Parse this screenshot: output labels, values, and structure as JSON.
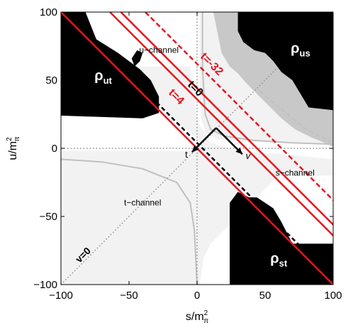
{
  "chart_data": {
    "type": "region-plot",
    "xlabel": "s/m",
    "xlabel_sup": "2",
    "xlabel_sub": "π",
    "ylabel": "u/m",
    "ylabel_sup": "2",
    "ylabel_sub": "π",
    "xlim": [
      -100,
      100
    ],
    "ylim": [
      -100,
      100
    ],
    "xticks": [
      -100,
      -50,
      0,
      50,
      100
    ],
    "yticks": [
      -100,
      -50,
      0,
      50,
      100
    ],
    "x_tick_labels": [
      "−100",
      "−50",
      "0",
      "50",
      "100"
    ],
    "y_tick_labels": [
      "−100",
      "−50",
      "0",
      "50",
      "100"
    ],
    "colors": {
      "black_region": "#000000",
      "gray_region": "#c8c8c8",
      "light_region": "#f2f2f2",
      "curve_gray": "#c0c0c0",
      "red": "#e8141e",
      "black_line": "#000000",
      "dotted": "#8c8c8c"
    },
    "lines": {
      "t0": {
        "t": 0,
        "label": "t=0",
        "style": "black-dashed"
      },
      "t4": {
        "t": 4,
        "label": "t=4",
        "style": "red-solid"
      },
      "tm32": {
        "t": -32,
        "label": "t=-32",
        "style": "red-solid"
      },
      "t_neg": {
        "t": -40,
        "label": "",
        "style": "red-solid"
      },
      "t_dash": {
        "t": -58,
        "label": "",
        "style": "red-dashed"
      },
      "v0": {
        "label": "v=0",
        "style": "gray-dotted"
      }
    },
    "channels": {
      "u": "u−channel",
      "s": "s−channel",
      "t": "t−channel"
    },
    "regions": {
      "ut": {
        "symbol": "ρ",
        "subscript": "ut"
      },
      "us": {
        "symbol": "ρ",
        "subscript": "us"
      },
      "st": {
        "symbol": "ρ",
        "subscript": "st"
      }
    },
    "arrows": {
      "origin": [
        14,
        15
      ],
      "t_label": "t",
      "v_label": "v"
    }
  }
}
